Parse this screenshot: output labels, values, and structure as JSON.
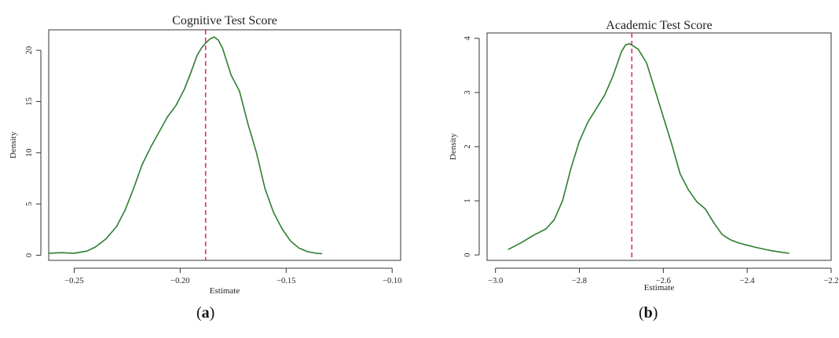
{
  "chart_data": [
    {
      "type": "line",
      "panel_label": "(a)",
      "panel_letter": "a",
      "title": "Cognitive Test Score",
      "xlabel": "Estimate",
      "ylabel": "Density",
      "xlim": [
        -0.262,
        -0.096
      ],
      "ylim": [
        -0.5,
        22
      ],
      "xticks": [
        -0.25,
        -0.2,
        -0.15,
        -0.1
      ],
      "xtick_labels": [
        "−0.25",
        "−0.20",
        "−0.15",
        "−0.10"
      ],
      "yticks": [
        0,
        5,
        10,
        15,
        20
      ],
      "ytick_labels": [
        "0",
        "5",
        "10",
        "15",
        "20"
      ],
      "reference_line_x": -0.188,
      "colors": {
        "line": "#2e7d2e",
        "reference": "#d6336c"
      },
      "series": [
        {
          "x": [
            -0.262,
            -0.256,
            -0.25,
            -0.244,
            -0.24,
            -0.235,
            -0.23,
            -0.226,
            -0.222,
            -0.218,
            -0.214,
            -0.21,
            -0.206,
            -0.202,
            -0.198,
            -0.195,
            -0.192,
            -0.19,
            -0.188,
            -0.186,
            -0.184,
            -0.182,
            -0.18,
            -0.176,
            -0.172,
            -0.168,
            -0.164,
            -0.16,
            -0.156,
            -0.152,
            -0.148,
            -0.144,
            -0.14,
            -0.136,
            -0.133
          ],
          "y": [
            0.2,
            0.25,
            0.2,
            0.4,
            0.8,
            1.6,
            2.8,
            4.4,
            6.5,
            8.8,
            10.5,
            12.0,
            13.5,
            14.6,
            16.2,
            17.8,
            19.5,
            20.2,
            20.7,
            21.1,
            21.3,
            21.0,
            20.2,
            17.6,
            16.0,
            12.8,
            10.0,
            6.5,
            4.2,
            2.6,
            1.4,
            0.7,
            0.35,
            0.2,
            0.15
          ]
        }
      ]
    },
    {
      "type": "line",
      "panel_label": "(b)",
      "panel_letter": "b",
      "title": "Academic Test Score",
      "xlabel": "Estimate",
      "ylabel": "Density",
      "xlim": [
        -3.02,
        -2.2
      ],
      "ylim": [
        -0.1,
        4.1
      ],
      "xticks": [
        -3.0,
        -2.8,
        -2.6,
        -2.4,
        -2.2
      ],
      "xtick_labels": [
        "−3.0",
        "−2.8",
        "−2.6",
        "−2.4",
        "−2.2"
      ],
      "yticks": [
        0,
        1,
        2,
        3,
        4
      ],
      "ytick_labels": [
        "0",
        "1",
        "2",
        "3",
        "4"
      ],
      "reference_line_x": -2.675,
      "colors": {
        "line": "#2e7d2e",
        "reference": "#d6336c"
      },
      "series": [
        {
          "x": [
            -2.97,
            -2.94,
            -2.91,
            -2.88,
            -2.86,
            -2.84,
            -2.82,
            -2.8,
            -2.78,
            -2.76,
            -2.74,
            -2.72,
            -2.7,
            -2.69,
            -2.68,
            -2.66,
            -2.64,
            -2.62,
            -2.6,
            -2.58,
            -2.56,
            -2.54,
            -2.52,
            -2.5,
            -2.48,
            -2.46,
            -2.44,
            -2.42,
            -2.4,
            -2.38,
            -2.35,
            -2.32,
            -2.3
          ],
          "y": [
            0.1,
            0.22,
            0.36,
            0.48,
            0.65,
            1.0,
            1.6,
            2.1,
            2.45,
            2.7,
            2.95,
            3.3,
            3.75,
            3.88,
            3.9,
            3.8,
            3.55,
            3.05,
            2.55,
            2.05,
            1.5,
            1.2,
            0.98,
            0.85,
            0.6,
            0.38,
            0.28,
            0.22,
            0.18,
            0.14,
            0.09,
            0.05,
            0.03
          ]
        }
      ]
    }
  ]
}
